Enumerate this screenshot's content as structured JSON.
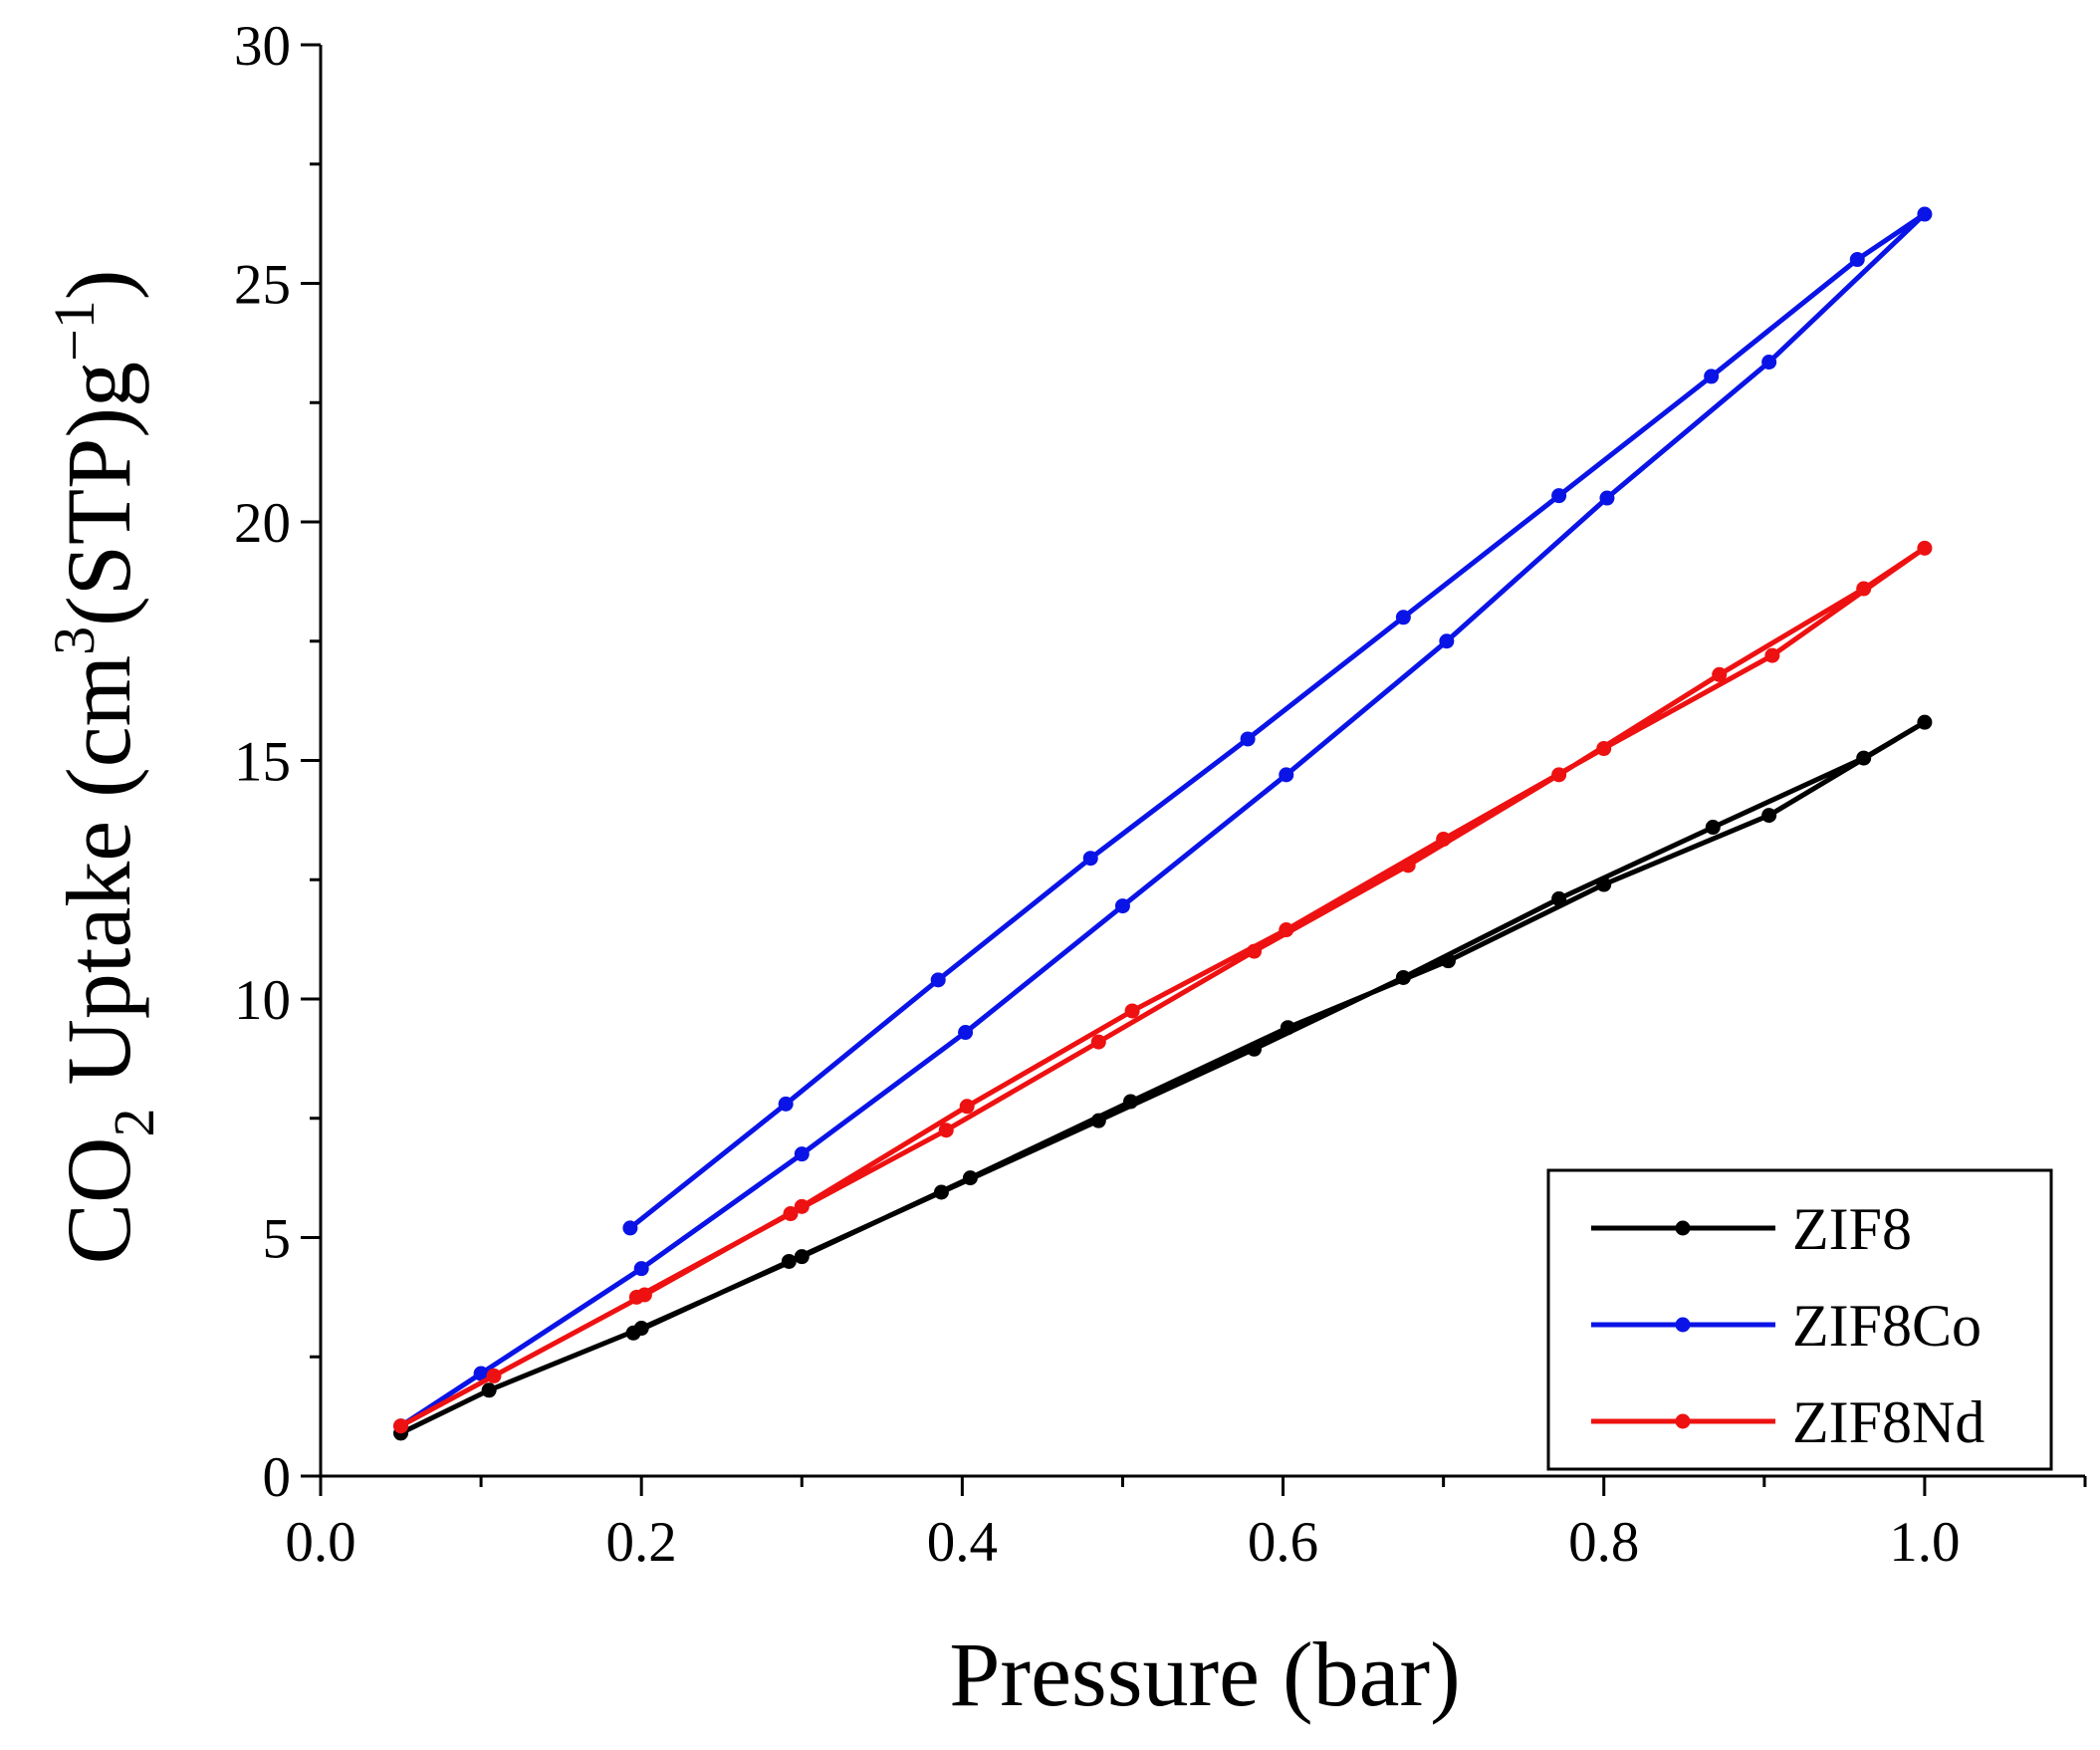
{
  "chart_data": {
    "type": "line",
    "title": "",
    "xlabel": "Pressure (bar)",
    "ylabel": {
      "prefix": "CO",
      "sub": "2",
      "mid": " Uptake (cm",
      "sup1": "3",
      "mid2": "(STP)g",
      "sup2": "−1",
      "suffix": ")"
    },
    "xlim": [
      0.0,
      1.1
    ],
    "ylim": [
      0,
      30
    ],
    "x_ticks": [
      {
        "value": 0.0,
        "label": "0.0"
      },
      {
        "value": 0.2,
        "label": "0.2"
      },
      {
        "value": 0.4,
        "label": "0.4"
      },
      {
        "value": 0.6,
        "label": "0.6"
      },
      {
        "value": 0.8,
        "label": "0.8"
      },
      {
        "value": 1.0,
        "label": "1.0"
      }
    ],
    "x_minor_ticks": [
      0.1,
      0.3,
      0.5,
      0.7,
      0.9,
      1.1
    ],
    "y_ticks": [
      {
        "value": 0,
        "label": "0"
      },
      {
        "value": 5,
        "label": "5"
      },
      {
        "value": 10,
        "label": "10"
      },
      {
        "value": 15,
        "label": "15"
      },
      {
        "value": 20,
        "label": "20"
      },
      {
        "value": 25,
        "label": "25"
      },
      {
        "value": 30,
        "label": "30"
      }
    ],
    "y_minor_ticks": [
      2.5,
      7.5,
      12.5,
      17.5,
      22.5,
      27.5
    ],
    "grid": false,
    "legend_position": "bottom-right",
    "series": [
      {
        "name": "ZIF8",
        "color": "#000000",
        "points": [
          [
            0.05,
            0.9
          ],
          [
            0.105,
            1.8
          ],
          [
            0.2,
            3.1
          ],
          [
            0.3,
            4.6
          ],
          [
            0.405,
            6.25
          ],
          [
            0.505,
            7.85
          ],
          [
            0.603,
            9.4
          ],
          [
            0.703,
            10.8
          ],
          [
            0.8,
            12.4
          ],
          [
            0.903,
            13.85
          ],
          [
            1.0,
            15.8
          ],
          [
            0.962,
            15.05
          ],
          [
            0.868,
            13.6
          ],
          [
            0.772,
            12.1
          ],
          [
            0.675,
            10.45
          ],
          [
            0.582,
            8.95
          ],
          [
            0.485,
            7.45
          ],
          [
            0.387,
            5.95
          ],
          [
            0.292,
            4.5
          ],
          [
            0.195,
            3.0
          ]
        ]
      },
      {
        "name": "ZIF8Co",
        "color": "#0a14e6",
        "points": [
          [
            0.05,
            1.05
          ],
          [
            0.1,
            2.15
          ],
          [
            0.2,
            4.35
          ],
          [
            0.3,
            6.75
          ],
          [
            0.402,
            9.3
          ],
          [
            0.5,
            11.95
          ],
          [
            0.602,
            14.7
          ],
          [
            0.702,
            17.5
          ],
          [
            0.802,
            20.5
          ],
          [
            0.903,
            23.35
          ],
          [
            1.0,
            26.45
          ],
          [
            0.958,
            25.5
          ],
          [
            0.867,
            23.05
          ],
          [
            0.772,
            20.55
          ],
          [
            0.675,
            18.0
          ],
          [
            0.578,
            15.45
          ],
          [
            0.48,
            12.95
          ],
          [
            0.385,
            10.4
          ],
          [
            0.29,
            7.8
          ],
          [
            0.193,
            5.2
          ]
        ]
      },
      {
        "name": "ZIF8Nd",
        "color": "#ee1111",
        "points": [
          [
            0.05,
            1.05
          ],
          [
            0.108,
            2.1
          ],
          [
            0.202,
            3.8
          ],
          [
            0.3,
            5.65
          ],
          [
            0.403,
            7.75
          ],
          [
            0.506,
            9.75
          ],
          [
            0.602,
            11.45
          ],
          [
            0.7,
            13.35
          ],
          [
            0.8,
            15.25
          ],
          [
            0.905,
            17.2
          ],
          [
            1.0,
            19.45
          ],
          [
            0.962,
            18.6
          ],
          [
            0.872,
            16.8
          ],
          [
            0.772,
            14.7
          ],
          [
            0.678,
            12.8
          ],
          [
            0.582,
            11.0
          ],
          [
            0.485,
            9.1
          ],
          [
            0.39,
            7.25
          ],
          [
            0.293,
            5.5
          ],
          [
            0.197,
            3.75
          ]
        ]
      }
    ]
  }
}
